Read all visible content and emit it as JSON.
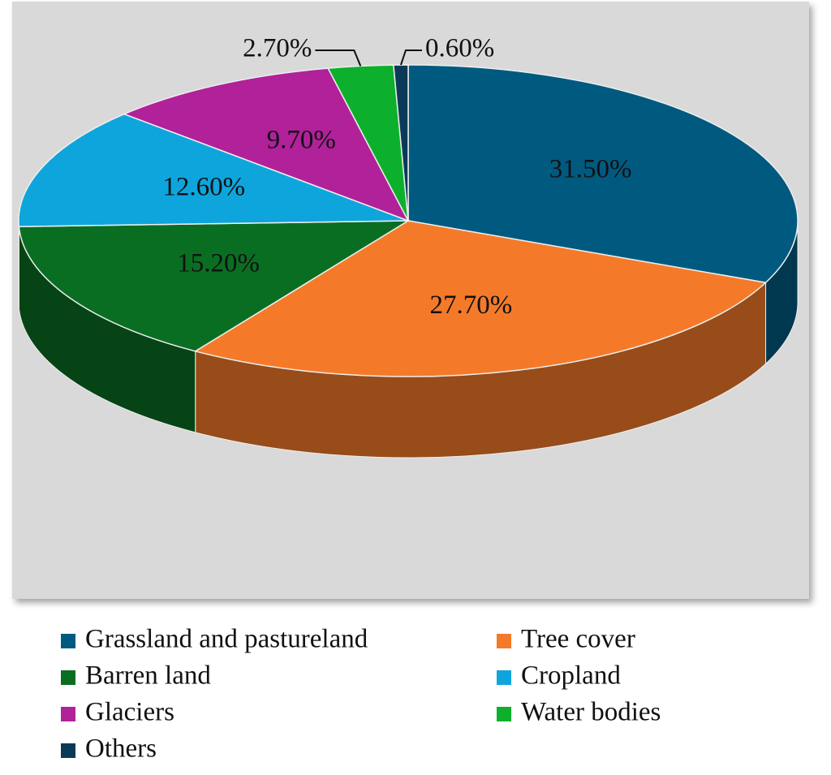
{
  "chart_data": {
    "type": "pie",
    "categories": [
      "Grassland and pastureland",
      "Tree cover",
      "Barren land",
      "Cropland",
      "Glaciers",
      "Water bodies",
      "Others"
    ],
    "values": [
      31.5,
      27.7,
      15.2,
      12.6,
      9.7,
      2.7,
      0.6
    ],
    "value_labels": [
      "31.50%",
      "27.70%",
      "15.20%",
      "12.60%",
      "9.70%",
      "2.70%",
      "0.60%"
    ],
    "colors": [
      "#005a80",
      "#f47a2a",
      "#0a6e22",
      "#0ea5dc",
      "#b0219a",
      "#0db02c",
      "#0b3a58"
    ],
    "legend": "bottom"
  }
}
